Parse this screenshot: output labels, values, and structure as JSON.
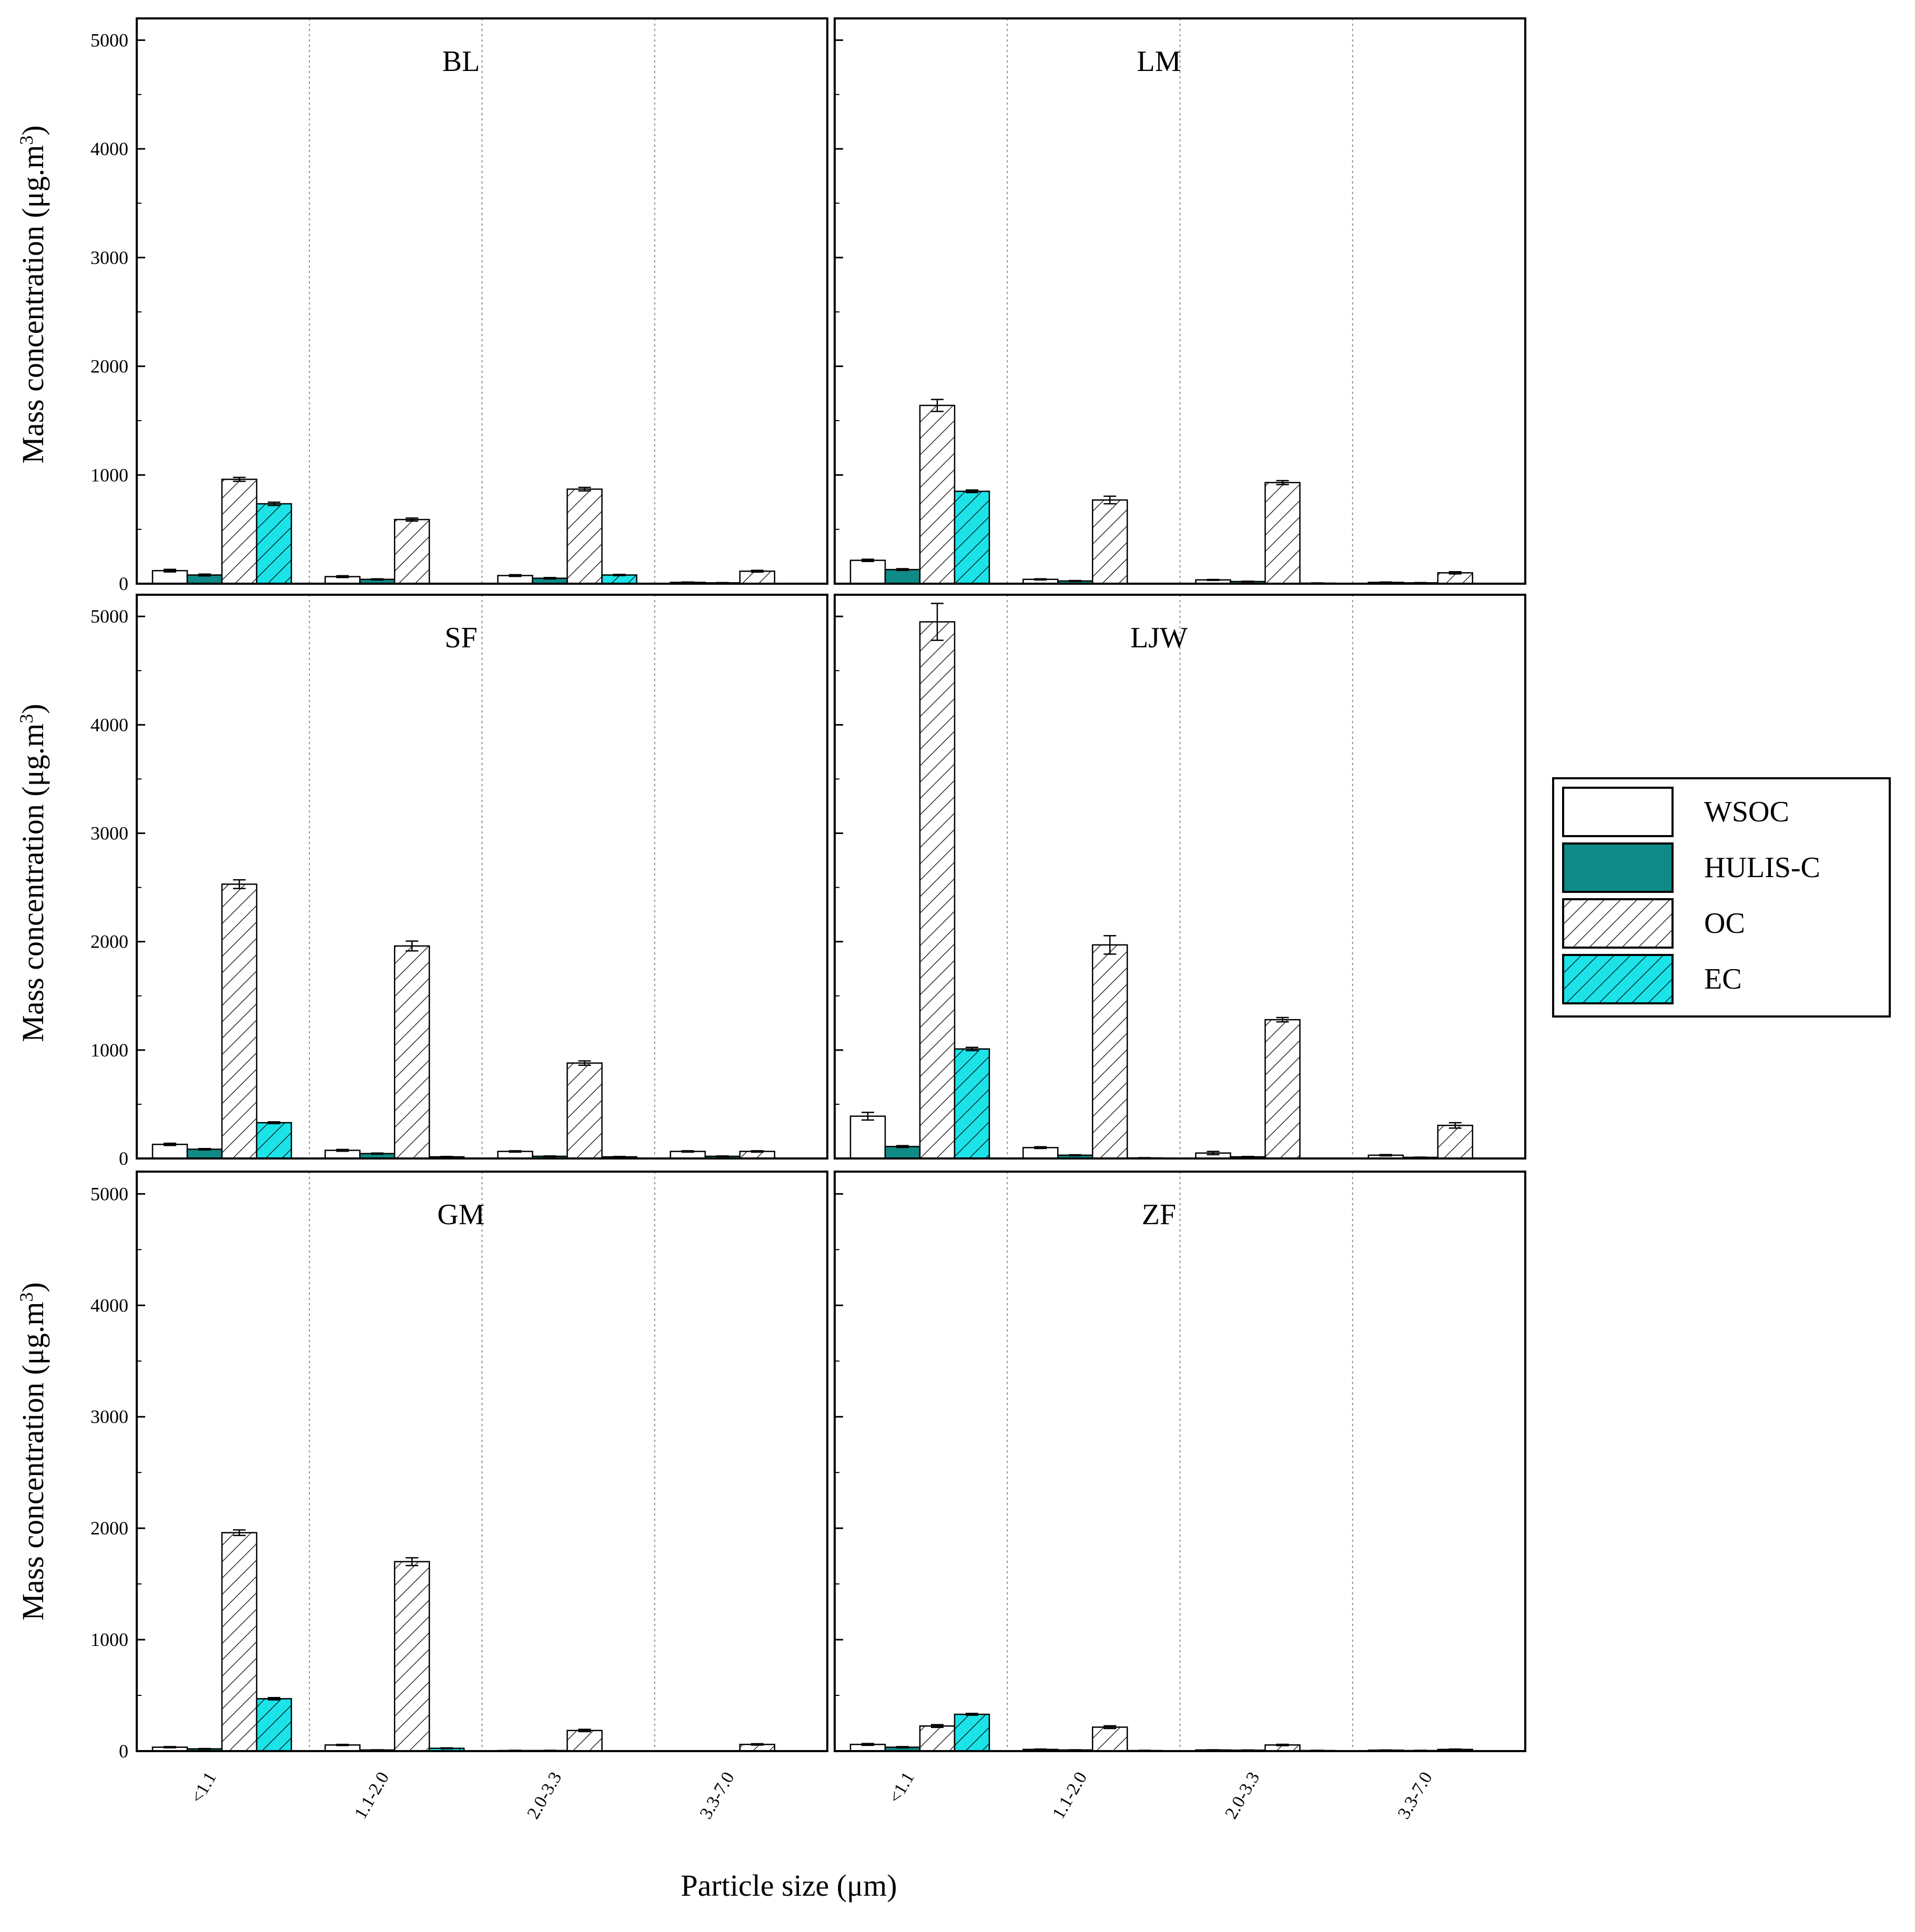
{
  "chart_data": {
    "type": "bar",
    "categories": [
      "<1.1",
      "1.1-2.0",
      "2.0-3.3",
      "3.3-7.0"
    ],
    "xlabel": "Particle size (μm)",
    "ylabel": "Mass concentration (μg.m",
    "ylabel_sup": "3",
    "ylabel_close": ")",
    "ylim": [
      0,
      5200
    ],
    "yticks": [
      0,
      1000,
      2000,
      3000,
      4000,
      5000
    ],
    "legend_position": "right",
    "series_styles": [
      {
        "name": "WSOC",
        "fill": "#ffffff",
        "hatch": false
      },
      {
        "name": "HULIS-C",
        "fill": "#0f8a86",
        "hatch": false
      },
      {
        "name": "OC",
        "fill": "#ffffff",
        "hatch": true
      },
      {
        "name": "EC",
        "fill": "#1be3e8",
        "hatch": true
      }
    ],
    "panels": [
      {
        "title": "BL",
        "series": [
          {
            "name": "WSOC",
            "values": [
              120,
              65,
              75,
              12
            ],
            "errors": [
              12,
              8,
              8,
              3
            ]
          },
          {
            "name": "HULIS-C",
            "values": [
              80,
              40,
              50,
              8
            ],
            "errors": [
              8,
              5,
              6,
              2
            ]
          },
          {
            "name": "OC",
            "values": [
              960,
              590,
              870,
              115
            ],
            "errors": [
              18,
              14,
              16,
              8
            ]
          },
          {
            "name": "EC",
            "values": [
              735,
              0,
              80,
              0
            ],
            "errors": [
              15,
              0,
              5,
              0
            ]
          }
        ]
      },
      {
        "title": "LM",
        "series": [
          {
            "name": "WSOC",
            "values": [
              215,
              40,
              35,
              12
            ],
            "errors": [
              10,
              5,
              4,
              3
            ]
          },
          {
            "name": "HULIS-C",
            "values": [
              130,
              25,
              20,
              8
            ],
            "errors": [
              8,
              4,
              3,
              2
            ]
          },
          {
            "name": "OC",
            "values": [
              1640,
              770,
              930,
              100
            ],
            "errors": [
              55,
              35,
              18,
              10
            ]
          },
          {
            "name": "EC",
            "values": [
              850,
              0,
              5,
              0
            ],
            "errors": [
              12,
              0,
              2,
              0
            ]
          }
        ]
      },
      {
        "title": "SF",
        "series": [
          {
            "name": "WSOC",
            "values": [
              130,
              75,
              65,
              65
            ],
            "errors": [
              10,
              8,
              6,
              6
            ]
          },
          {
            "name": "HULIS-C",
            "values": [
              85,
              45,
              20,
              20
            ],
            "errors": [
              6,
              5,
              3,
              3
            ]
          },
          {
            "name": "OC",
            "values": [
              2530,
              1960,
              880,
              65
            ],
            "errors": [
              40,
              45,
              20,
              6
            ]
          },
          {
            "name": "EC",
            "values": [
              330,
              15,
              15,
              0
            ],
            "errors": [
              8,
              3,
              3,
              0
            ]
          }
        ]
      },
      {
        "title": "LJW",
        "series": [
          {
            "name": "WSOC",
            "values": [
              390,
              100,
              50,
              30
            ],
            "errors": [
              35,
              8,
              15,
              6
            ]
          },
          {
            "name": "HULIS-C",
            "values": [
              110,
              30,
              15,
              10
            ],
            "errors": [
              8,
              4,
              3,
              2
            ]
          },
          {
            "name": "OC",
            "values": [
              4950,
              1970,
              1280,
              305
            ],
            "errors": [
              170,
              85,
              20,
              25
            ]
          },
          {
            "name": "EC",
            "values": [
              1010,
              5,
              0,
              0
            ],
            "errors": [
              15,
              2,
              0,
              0
            ]
          }
        ]
      },
      {
        "title": "GM",
        "series": [
          {
            "name": "WSOC",
            "values": [
              35,
              55,
              5,
              0
            ],
            "errors": [
              5,
              5,
              2,
              0
            ]
          },
          {
            "name": "HULIS-C",
            "values": [
              20,
              10,
              5,
              0
            ],
            "errors": [
              3,
              2,
              2,
              0
            ]
          },
          {
            "name": "OC",
            "values": [
              1960,
              1700,
              185,
              60
            ],
            "errors": [
              25,
              35,
              10,
              6
            ]
          },
          {
            "name": "EC",
            "values": [
              470,
              25,
              0,
              0
            ],
            "errors": [
              10,
              4,
              0,
              0
            ]
          }
        ]
      },
      {
        "title": "ZF",
        "series": [
          {
            "name": "WSOC",
            "values": [
              60,
              15,
              10,
              8
            ],
            "errors": [
              8,
              3,
              2,
              2
            ]
          },
          {
            "name": "HULIS-C",
            "values": [
              35,
              10,
              8,
              5
            ],
            "errors": [
              5,
              2,
              2,
              2
            ]
          },
          {
            "name": "OC",
            "values": [
              225,
              215,
              55,
              15
            ],
            "errors": [
              12,
              12,
              6,
              3
            ]
          },
          {
            "name": "EC",
            "values": [
              330,
              5,
              5,
              0
            ],
            "errors": [
              8,
              2,
              2,
              0
            ]
          }
        ]
      }
    ]
  }
}
